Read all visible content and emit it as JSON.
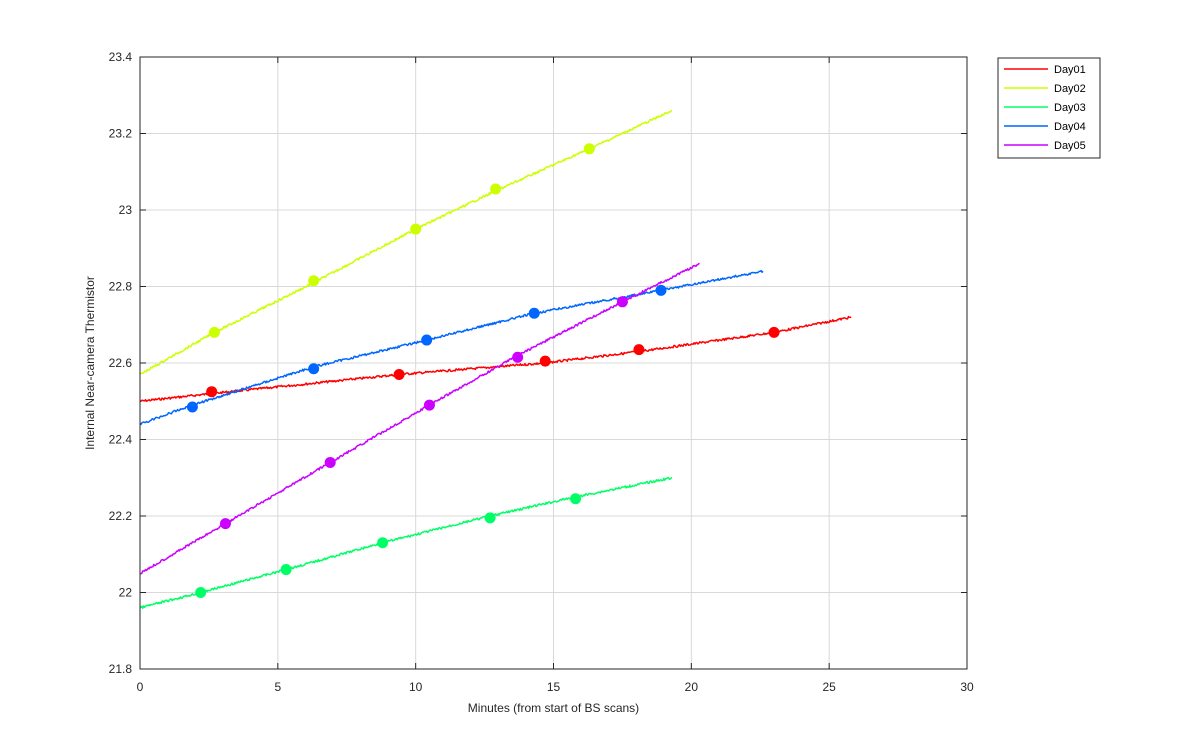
{
  "chart_data": {
    "type": "line",
    "title": "",
    "xlabel": "Minutes (from start of BS scans)",
    "ylabel": "Internal Near-camera Thermistor",
    "xlim": [
      0,
      30
    ],
    "ylim": [
      21.8,
      23.4
    ],
    "xticks": [
      "0",
      "5",
      "10",
      "15",
      "20",
      "25",
      "30"
    ],
    "yticks": [
      "21.8",
      "22",
      "22.2",
      "22.4",
      "22.6",
      "22.8",
      "23",
      "23.2",
      "23.4"
    ],
    "grid": true,
    "legend_position": "outside top-right",
    "series": [
      {
        "name": "Day01",
        "color": "#ff0000",
        "line": [
          [
            0,
            22.5
          ],
          [
            2.6,
            22.52
          ],
          [
            9.4,
            22.57
          ],
          [
            14.7,
            22.6
          ],
          [
            18.1,
            22.63
          ],
          [
            23.0,
            22.68
          ],
          [
            25.8,
            22.72
          ]
        ],
        "markers": [
          [
            2.6,
            22.525
          ],
          [
            9.4,
            22.57
          ],
          [
            14.7,
            22.605
          ],
          [
            18.1,
            22.635
          ],
          [
            23.0,
            22.68
          ]
        ]
      },
      {
        "name": "Day02",
        "color": "#ccff00",
        "line": [
          [
            0,
            22.57
          ],
          [
            2.7,
            22.68
          ],
          [
            6.3,
            22.81
          ],
          [
            10.0,
            22.95
          ],
          [
            12.9,
            23.05
          ],
          [
            16.3,
            23.16
          ],
          [
            19.3,
            23.26
          ]
        ],
        "markers": [
          [
            2.7,
            22.68
          ],
          [
            6.3,
            22.815
          ],
          [
            10.0,
            22.95
          ],
          [
            12.9,
            23.055
          ],
          [
            16.3,
            23.16
          ]
        ]
      },
      {
        "name": "Day03",
        "color": "#00ff66",
        "line": [
          [
            0,
            21.96
          ],
          [
            2.2,
            22.0
          ],
          [
            5.3,
            22.06
          ],
          [
            8.8,
            22.13
          ],
          [
            12.7,
            22.2
          ],
          [
            15.8,
            22.25
          ],
          [
            19.3,
            22.3
          ]
        ],
        "markers": [
          [
            2.2,
            22.0
          ],
          [
            5.3,
            22.06
          ],
          [
            8.8,
            22.13
          ],
          [
            12.7,
            22.195
          ],
          [
            15.8,
            22.245
          ]
        ]
      },
      {
        "name": "Day04",
        "color": "#0066ff",
        "line": [
          [
            0,
            22.44
          ],
          [
            1.9,
            22.49
          ],
          [
            6.3,
            22.59
          ],
          [
            10.4,
            22.66
          ],
          [
            14.3,
            22.73
          ],
          [
            18.9,
            22.79
          ],
          [
            22.6,
            22.84
          ]
        ],
        "markers": [
          [
            1.9,
            22.485
          ],
          [
            6.3,
            22.585
          ],
          [
            10.4,
            22.66
          ],
          [
            14.3,
            22.73
          ],
          [
            18.9,
            22.79
          ]
        ]
      },
      {
        "name": "Day05",
        "color": "#cc00ff",
        "line": [
          [
            0,
            22.05
          ],
          [
            3.1,
            22.18
          ],
          [
            6.9,
            22.34
          ],
          [
            10.5,
            22.49
          ],
          [
            13.7,
            22.62
          ],
          [
            17.5,
            22.76
          ],
          [
            20.3,
            22.86
          ]
        ],
        "markers": [
          [
            3.1,
            22.18
          ],
          [
            6.9,
            22.34
          ],
          [
            10.5,
            22.49
          ],
          [
            13.7,
            22.615
          ],
          [
            17.5,
            22.76
          ]
        ]
      }
    ]
  }
}
